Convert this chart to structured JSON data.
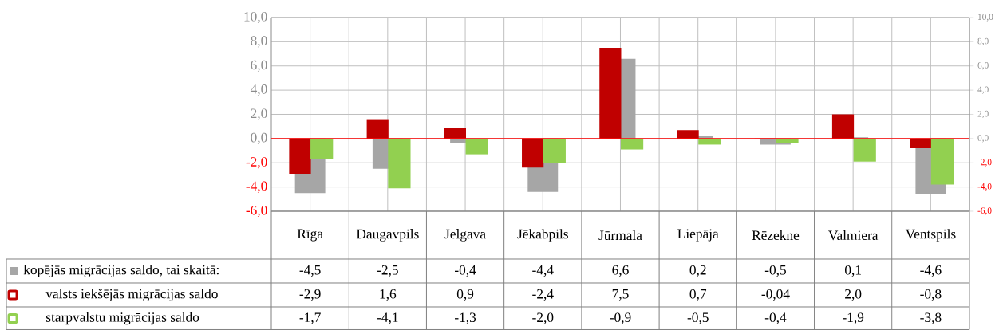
{
  "chart_data": {
    "type": "bar",
    "categories": [
      "Rīga",
      "Daugavpils",
      "Jelgava",
      "Jēkabpils",
      "Jūrmala",
      "Liepāja",
      "Rēzekne",
      "Valmiera",
      "Ventspils"
    ],
    "series": [
      {
        "name": "kopējās migrācijas saldo, tai skaitā:",
        "color": "#a6a6a6",
        "values": [
          -4.5,
          -2.5,
          -0.4,
          -4.4,
          6.6,
          0.2,
          -0.5,
          0.1,
          -4.6
        ],
        "value_labels": [
          "-4,5",
          "-2,5",
          "-0,4",
          "-4,4",
          "6,6",
          "0,2",
          "-0,5",
          "0,1",
          "-4,6"
        ]
      },
      {
        "name": "valsts iekšējās migrācijas saldo",
        "color": "#c00000",
        "values": [
          -2.9,
          1.6,
          0.9,
          -2.4,
          7.5,
          0.7,
          -0.04,
          2.0,
          -0.8
        ],
        "value_labels": [
          "-2,9",
          "1,6",
          "0,9",
          "-2,4",
          "7,5",
          "0,7",
          "-0,04",
          "2,0",
          "-0,8"
        ]
      },
      {
        "name": "starpvalstu migrācijas saldo",
        "color": "#92d050",
        "values": [
          -1.7,
          -4.1,
          -1.3,
          -2.0,
          -0.9,
          -0.5,
          -0.4,
          -1.9,
          -3.8
        ],
        "value_labels": [
          "-1,7",
          "-4,1",
          "-1,3",
          "-2,0",
          "-0,9",
          "-0,5",
          "-0,4",
          "-1,9",
          "-3,8"
        ]
      }
    ],
    "ylim": [
      -6,
      10
    ],
    "yticks": [
      {
        "value": -6,
        "label": "-6,0"
      },
      {
        "value": -4,
        "label": "-4,0"
      },
      {
        "value": -2,
        "label": "-2,0"
      },
      {
        "value": 0,
        "label": "0,0"
      },
      {
        "value": 2,
        "label": "2,0"
      },
      {
        "value": 4,
        "label": "4,0"
      },
      {
        "value": 6,
        "label": "6,0"
      },
      {
        "value": 8,
        "label": "8,0"
      },
      {
        "value": 10,
        "label": "10,0"
      }
    ],
    "y2lim": [
      -6,
      10
    ],
    "y2ticks": [
      {
        "value": -6,
        "label": "-6,0"
      },
      {
        "value": -4,
        "label": "-4,0"
      },
      {
        "value": -2,
        "label": "-2,0"
      },
      {
        "value": 0,
        "label": "0,0"
      },
      {
        "value": 2,
        "label": "2,0"
      },
      {
        "value": 4,
        "label": "4,0"
      },
      {
        "value": 6,
        "label": "6,0"
      },
      {
        "value": 8,
        "label": "8,0"
      },
      {
        "value": 10,
        "label": "10,0"
      }
    ],
    "grid": true,
    "legend": "bottom left",
    "ref_lines": [
      {
        "axis": "y",
        "value": 0,
        "color": "#ff0000"
      }
    ]
  }
}
